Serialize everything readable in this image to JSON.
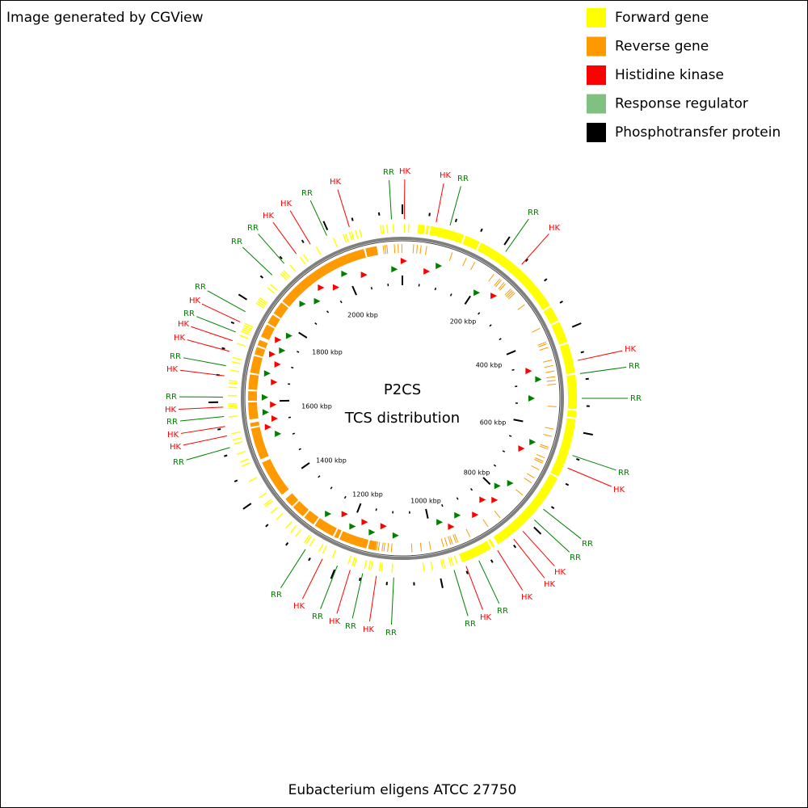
{
  "header": {
    "text": "Image generated by CGView"
  },
  "legend": [
    {
      "label": "Forward gene",
      "color": "#ffff00"
    },
    {
      "label": "Reverse gene",
      "color": "#ff9900"
    },
    {
      "label": "Histidine kinase",
      "color": "#ff0000"
    },
    {
      "label": "Response regulator",
      "color": "#80c080"
    },
    {
      "label": "Phosphotransfer protein",
      "color": "#000000"
    }
  ],
  "center": {
    "title": "P2CS",
    "subtitle": "TCS distribution"
  },
  "footer": {
    "text": "Eubacterium eligens ATCC 27750"
  },
  "ticks": [
    "200 kbp",
    "400 kbp",
    "600 kbp",
    "800 kbp",
    "1000 kbp",
    "1200 kbp",
    "1400 kbp",
    "1600 kbp",
    "1800 kbp",
    "2000 kbp"
  ],
  "features": [
    {
      "label": "RR",
      "color": "#008000"
    },
    {
      "label": "HK",
      "color": "#ff0000"
    },
    {
      "label": "HK",
      "color": "#ff0000"
    },
    {
      "label": "RR",
      "color": "#008000"
    },
    {
      "label": "RR",
      "color": "#008000"
    },
    {
      "label": "HK",
      "color": "#ff0000"
    },
    {
      "label": "HK",
      "color": "#ff0000"
    },
    {
      "label": "RR",
      "color": "#008000"
    },
    {
      "label": "RR",
      "color": "#008000"
    },
    {
      "label": "RR",
      "color": "#008000"
    },
    {
      "label": "HK",
      "color": "#ff0000"
    },
    {
      "label": "RR",
      "color": "#008000"
    },
    {
      "label": "RR",
      "color": "#008000"
    },
    {
      "label": "HK",
      "color": "#ff0000"
    },
    {
      "label": "HK",
      "color": "#ff0000"
    },
    {
      "label": "HK",
      "color": "#ff0000"
    },
    {
      "label": "RR",
      "color": "#008000"
    },
    {
      "label": "HK",
      "color": "#ff0000"
    },
    {
      "label": "RR",
      "color": "#008000"
    },
    {
      "label": "RR",
      "color": "#008000"
    },
    {
      "label": "HK",
      "color": "#ff0000"
    },
    {
      "label": "RR",
      "color": "#008000"
    },
    {
      "label": "HK",
      "color": "#ff0000"
    },
    {
      "label": "RR",
      "color": "#008000"
    },
    {
      "label": "HK",
      "color": "#ff0000"
    },
    {
      "label": "RR",
      "color": "#008000"
    },
    {
      "label": "RR",
      "color": "#008000"
    },
    {
      "label": "HK",
      "color": "#ff0000"
    },
    {
      "label": "HK",
      "color": "#ff0000"
    },
    {
      "label": "RR",
      "color": "#008000"
    },
    {
      "label": "HK",
      "color": "#ff0000"
    },
    {
      "label": "RR",
      "color": "#008000"
    },
    {
      "label": "HK",
      "color": "#ff0000"
    },
    {
      "label": "RR",
      "color": "#008000"
    },
    {
      "label": "HK",
      "color": "#ff0000"
    },
    {
      "label": "HK",
      "color": "#ff0000"
    },
    {
      "label": "RR",
      "color": "#008000"
    },
    {
      "label": "HK",
      "color": "#ff0000"
    },
    {
      "label": "RR",
      "color": "#008000"
    },
    {
      "label": "RR",
      "color": "#008000"
    },
    {
      "label": "RR",
      "color": "#008000"
    },
    {
      "label": "HK",
      "color": "#ff0000"
    },
    {
      "label": "HK",
      "color": "#ff0000"
    },
    {
      "label": "RR",
      "color": "#008000"
    },
    {
      "label": "HK",
      "color": "#ff0000"
    }
  ]
}
